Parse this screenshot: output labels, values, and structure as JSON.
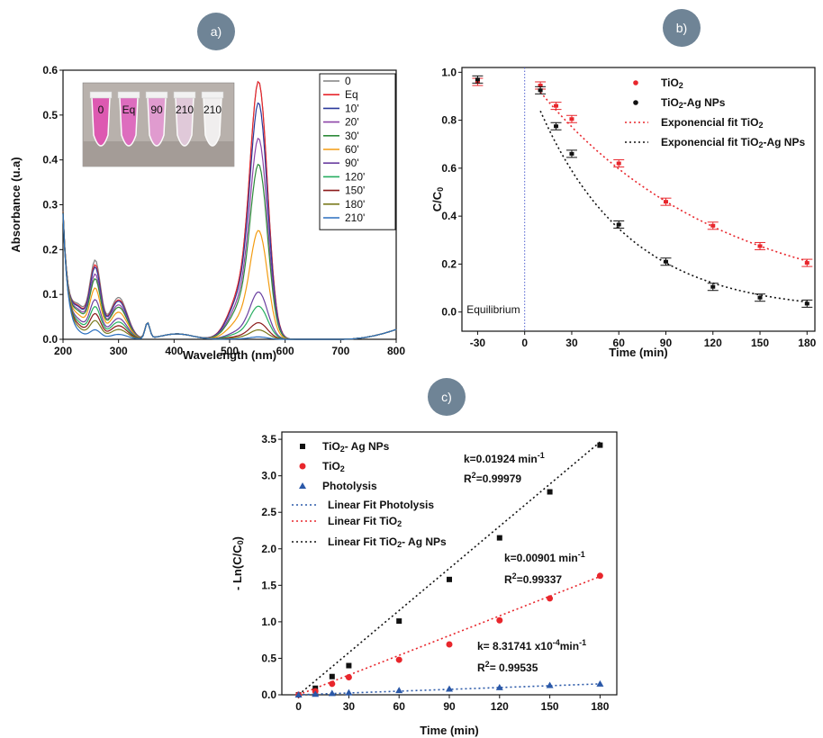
{
  "badges": {
    "a": "a)",
    "b": "b)",
    "c": "c)"
  },
  "chart_data": [
    {
      "id": "a",
      "type": "line",
      "title": "",
      "xlabel": "Wavelength (nm)",
      "ylabel": "Absorbance (u.a)",
      "xlim": [
        200,
        800
      ],
      "ylim": [
        0,
        0.6
      ],
      "xticks": [
        200,
        300,
        400,
        500,
        600,
        700,
        800
      ],
      "yticks": [
        0.0,
        0.1,
        0.2,
        0.3,
        0.4,
        0.5,
        0.6
      ],
      "legend_position": "top-right",
      "inset_photo_labels": [
        "0",
        "Eq",
        "90",
        "210",
        "210"
      ],
      "series": [
        {
          "name": "0",
          "color": "#808080",
          "peak": 0.545,
          "uv": 0.17
        },
        {
          "name": "Eq",
          "color": "#e8262c",
          "peak": 0.545,
          "uv": 0.16
        },
        {
          "name": "10'",
          "color": "#2b3a9c",
          "peak": 0.5,
          "uv": 0.155
        },
        {
          "name": "20'",
          "color": "#8d44a8",
          "peak": 0.425,
          "uv": 0.14
        },
        {
          "name": "30'",
          "color": "#2e8b3a",
          "peak": 0.37,
          "uv": 0.13
        },
        {
          "name": "60'",
          "color": "#f39c12",
          "peak": 0.23,
          "uv": 0.11
        },
        {
          "name": "90'",
          "color": "#6a3fa0",
          "peak": 0.1,
          "uv": 0.085
        },
        {
          "name": "120'",
          "color": "#27ae60",
          "peak": 0.07,
          "uv": 0.07
        },
        {
          "name": "150'",
          "color": "#8b1a1a",
          "peak": 0.035,
          "uv": 0.055
        },
        {
          "name": "180'",
          "color": "#7a7a1e",
          "peak": 0.02,
          "uv": 0.04
        },
        {
          "name": "210'",
          "color": "#2a6fbf",
          "peak": 0.005,
          "uv": 0.02
        }
      ]
    },
    {
      "id": "b",
      "type": "scatter",
      "title": "",
      "xlabel": "Time (min)",
      "ylabel": "C/C0",
      "xlim": [
        -40,
        185
      ],
      "ylim": [
        -0.08,
        1.02
      ],
      "xticks": [
        -30,
        0,
        30,
        60,
        90,
        120,
        150,
        180
      ],
      "yticks": [
        0.0,
        0.2,
        0.4,
        0.6,
        0.8,
        1.0
      ],
      "annotation": "Equilibrium",
      "legend_position": "top-right",
      "series": [
        {
          "name": "TiO",
          "name_sub": "2",
          "color": "#e8262c",
          "x": [
            -30,
            10,
            20,
            30,
            60,
            90,
            120,
            150,
            180
          ],
          "y": [
            0.96,
            0.945,
            0.86,
            0.805,
            0.62,
            0.46,
            0.36,
            0.275,
            0.205
          ]
        },
        {
          "name": "TiO",
          "name_sub": "2",
          "name_suffix": "-Ag NPs",
          "color": "#111111",
          "x": [
            -30,
            10,
            20,
            30,
            60,
            90,
            120,
            150,
            180
          ],
          "y": [
            0.97,
            0.925,
            0.775,
            0.66,
            0.365,
            0.21,
            0.105,
            0.06,
            0.035
          ]
        }
      ],
      "fits": [
        {
          "name": "Exponencial fit TiO",
          "name_sub": "2",
          "name_suffix": "",
          "color": "#e8262c",
          "rate": 0.0086
        },
        {
          "name": "Exponencial fit TiO",
          "name_sub": "2",
          "name_suffix": "-Ag NPs",
          "color": "#111111",
          "rate": 0.0176
        }
      ]
    },
    {
      "id": "c",
      "type": "scatter",
      "title": "",
      "xlabel": "Time (min)",
      "ylabel": "- Ln(C/C0)",
      "xlim": [
        -10,
        190
      ],
      "ylim": [
        0,
        3.6
      ],
      "xticks": [
        0,
        30,
        60,
        90,
        120,
        150,
        180
      ],
      "yticks": [
        0.0,
        0.5,
        1.0,
        1.5,
        2.0,
        2.5,
        3.0,
        3.5
      ],
      "legend_position": "top-left",
      "series": [
        {
          "name": "TiO",
          "name_sub": "2",
          "name_suffix": "- Ag NPs",
          "color": "#111111",
          "marker": "square",
          "x": [
            0,
            10,
            20,
            30,
            60,
            90,
            120,
            150,
            180
          ],
          "y": [
            0.0,
            0.09,
            0.25,
            0.4,
            1.01,
            1.58,
            2.15,
            2.78,
            3.42
          ]
        },
        {
          "name": "TiO",
          "name_sub": "2",
          "name_suffix": "",
          "color": "#e8262c",
          "marker": "circle",
          "x": [
            0,
            10,
            20,
            30,
            60,
            90,
            120,
            150,
            180
          ],
          "y": [
            0.0,
            0.05,
            0.15,
            0.24,
            0.48,
            0.69,
            1.02,
            1.32,
            1.63
          ]
        },
        {
          "name": "Photolysis",
          "color": "#2a58a8",
          "marker": "triangle",
          "x": [
            0,
            10,
            20,
            30,
            60,
            90,
            120,
            150,
            180
          ],
          "y": [
            0.0,
            0.01,
            0.02,
            0.03,
            0.06,
            0.08,
            0.1,
            0.13,
            0.15
          ]
        }
      ],
      "fits": [
        {
          "name": "Linear Fit Photolysis",
          "name_sub": "",
          "name_suffix": "",
          "color": "#2a58a8",
          "slope": 0.000831741
        },
        {
          "name": "Linear Fit TiO",
          "name_sub": "2",
          "name_suffix": "",
          "color": "#e8262c",
          "slope": 0.00901
        },
        {
          "name": "Linear Fit  TiO",
          "name_sub": "2",
          "name_suffix": "- Ag NPs",
          "color": "#111111",
          "slope": 0.01924
        }
      ],
      "annotations": [
        {
          "k": "k=0.01924 min",
          "k_sup": "-1",
          "r2": "=0.99979"
        },
        {
          "k": "k=0.00901 min",
          "k_sup": "-1",
          "r2": "=0.99337"
        },
        {
          "k": "k= 8.31741 x10",
          "k_sup": "-4",
          "k_tail": "min",
          "k_sup2": "-1",
          "r2": "= 0.99535"
        }
      ]
    }
  ]
}
